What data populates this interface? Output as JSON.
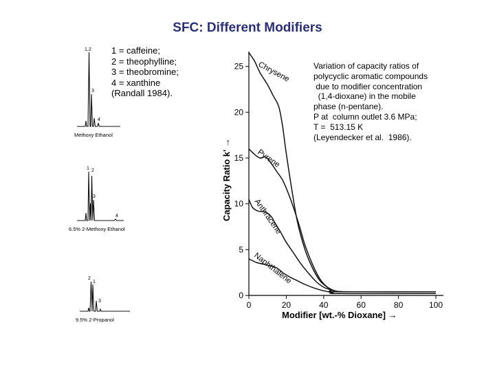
{
  "page_title": "SFC: Different Modifiers",
  "legend_lines": [
    "1 = caffeine;",
    "2 = theophylline;",
    "3 = theobromine;",
    "4 = xanthine",
    "(Randall 1984)."
  ],
  "chromatograms": [
    {
      "caption": "Methoxy Ethanol",
      "peak_labels": [
        "1,2",
        "3",
        "4"
      ]
    },
    {
      "caption": "6.5% 2-Methoxy Ethanol",
      "peak_labels": [
        "1",
        "2",
        "3",
        "4"
      ]
    },
    {
      "caption": "9.5%  2-Propanol",
      "peak_labels": [
        "2",
        "1",
        "3"
      ]
    }
  ],
  "note_lines": [
    "Variation of capacity ratios of",
    "polycyclic aromatic compounds",
    " due to modifier concentration",
    "  (1,4-dioxane) in the mobile",
    "phase (n-pentane).",
    "P at  column outlet 3.6 MPa;",
    "T =  513.15 K",
    "(Leyendecker et al.  1986)."
  ],
  "chart_data": {
    "type": "line",
    "xlabel": "Modifier [wt.-% Dioxane] →",
    "ylabel": "Capacity Ratio   k'  →",
    "xlim": [
      0,
      100
    ],
    "ylim": [
      0,
      27
    ],
    "x_ticks": [
      "0",
      "20",
      "40",
      "60",
      "80",
      "100"
    ],
    "y_ticks": [
      "0",
      "5",
      "10",
      "15",
      "20",
      "25"
    ],
    "grid": false,
    "series": [
      {
        "name": "Chrysene",
        "points": [
          [
            0,
            26.5
          ],
          [
            3,
            25.6
          ],
          [
            6,
            24.3
          ],
          [
            10,
            23
          ],
          [
            13,
            21.8
          ],
          [
            16,
            20.6
          ],
          [
            18,
            18.5
          ],
          [
            20,
            15.5
          ],
          [
            23,
            11.5
          ],
          [
            26,
            8
          ],
          [
            30,
            5
          ],
          [
            34,
            3
          ],
          [
            38,
            1.6
          ],
          [
            42,
            0.9
          ],
          [
            46,
            0.5
          ],
          [
            50,
            0.4
          ],
          [
            60,
            0.4
          ],
          [
            100,
            0.4
          ]
        ]
      },
      {
        "name": "Pyrene",
        "points": [
          [
            0,
            16
          ],
          [
            3,
            15.4
          ],
          [
            6,
            15
          ],
          [
            9,
            15.1
          ],
          [
            12,
            14.4
          ],
          [
            15,
            13.5
          ],
          [
            18,
            12.6
          ],
          [
            21,
            11.2
          ],
          [
            24,
            9.5
          ],
          [
            27,
            7.6
          ],
          [
            30,
            5.5
          ],
          [
            34,
            3.4
          ],
          [
            38,
            1.8
          ],
          [
            42,
            0.9
          ],
          [
            46,
            0.5
          ],
          [
            55,
            0.4
          ],
          [
            100,
            0.4
          ]
        ]
      },
      {
        "name": "Anthracene",
        "points": [
          [
            0,
            10.5
          ],
          [
            2,
            9.6
          ],
          [
            5,
            9.2
          ],
          [
            9,
            9.1
          ],
          [
            12,
            8.6
          ],
          [
            14,
            7.9
          ],
          [
            17,
            6.9
          ],
          [
            20,
            5.8
          ],
          [
            24,
            4.6
          ],
          [
            28,
            3.4
          ],
          [
            32,
            2.4
          ],
          [
            36,
            1.5
          ],
          [
            40,
            0.9
          ],
          [
            44,
            0.6
          ],
          [
            48,
            0.4
          ],
          [
            100,
            0.4
          ]
        ]
      },
      {
        "name": "Naphthalene",
        "points": [
          [
            0,
            4
          ],
          [
            4,
            3.6
          ],
          [
            8,
            3.4
          ],
          [
            12,
            3.2
          ],
          [
            15,
            3
          ],
          [
            18,
            2.5
          ],
          [
            22,
            2
          ],
          [
            26,
            1.6
          ],
          [
            30,
            1.2
          ],
          [
            35,
            0.8
          ],
          [
            40,
            0.5
          ],
          [
            45,
            0.3
          ],
          [
            48,
            0.2
          ],
          [
            100,
            0.2
          ]
        ]
      }
    ]
  }
}
